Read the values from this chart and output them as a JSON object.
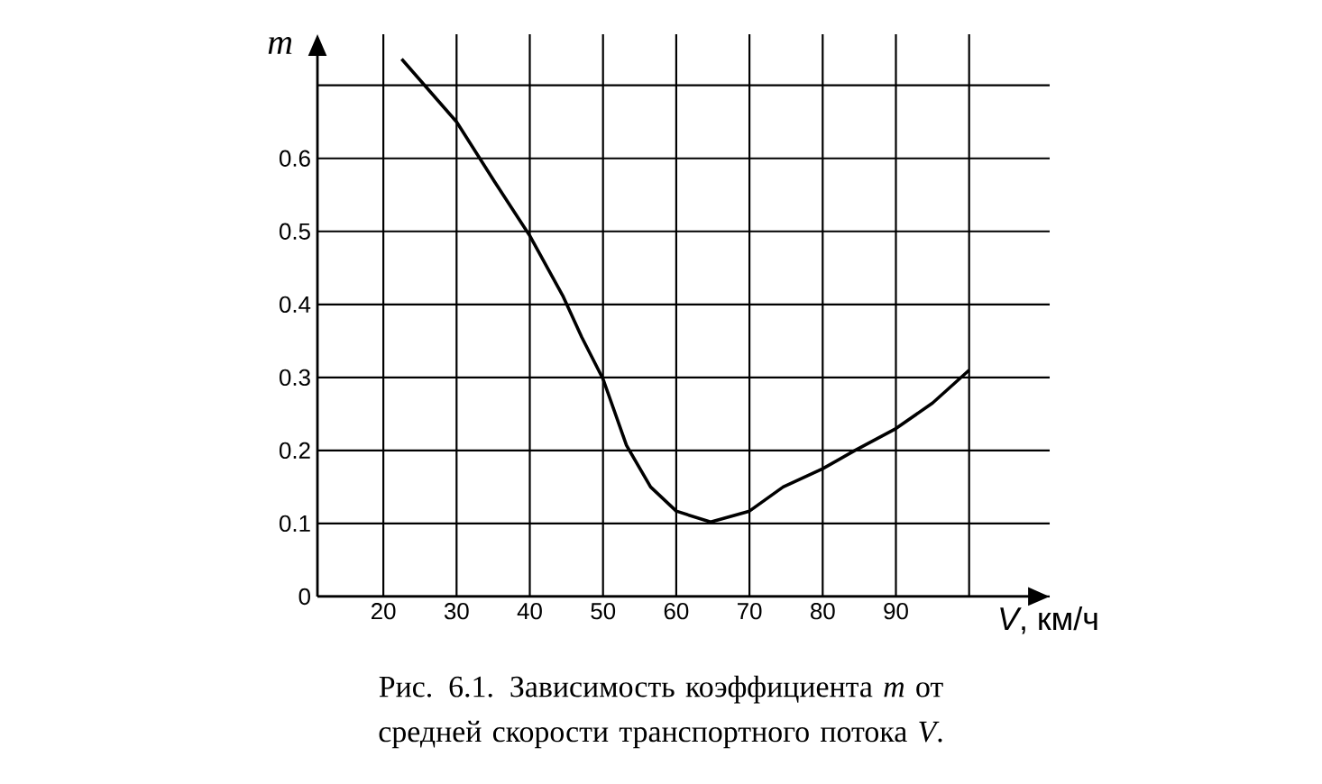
{
  "chart_data": {
    "type": "line",
    "xlabel": "*V*, км/ч",
    "ylabel": "m",
    "annotations": [
      "Рис. 6.1. Зависимость коэффициента *m* от средней скорости транспортного потока *V*."
    ],
    "x": [
      22.5,
      30,
      35.2,
      40,
      44.5,
      47.1,
      50,
      53.2,
      56.5,
      60,
      64.7,
      70,
      74.6,
      80,
      84.4,
      90,
      95,
      100
    ],
    "values": [
      0.736,
      0.65,
      0.568,
      0.494,
      0.412,
      0.355,
      0.298,
      0.207,
      0.15,
      0.117,
      0.102,
      0.117,
      0.15,
      0.175,
      0.2,
      0.23,
      0.265,
      0.31
    ],
    "color": "#000000",
    "line_style": "solid",
    "grid": true,
    "xlim": [
      11,
      111
    ],
    "ylim": [
      0,
      0.77
    ],
    "xticks": [
      20,
      30,
      40,
      50,
      60,
      70,
      80,
      90,
      {
        "value": 100,
        "label": null
      }
    ],
    "yticks": [
      0,
      0.1,
      0.2,
      0.3,
      0.4,
      0.5,
      0.6,
      {
        "value": 0.7,
        "label": null
      }
    ]
  }
}
